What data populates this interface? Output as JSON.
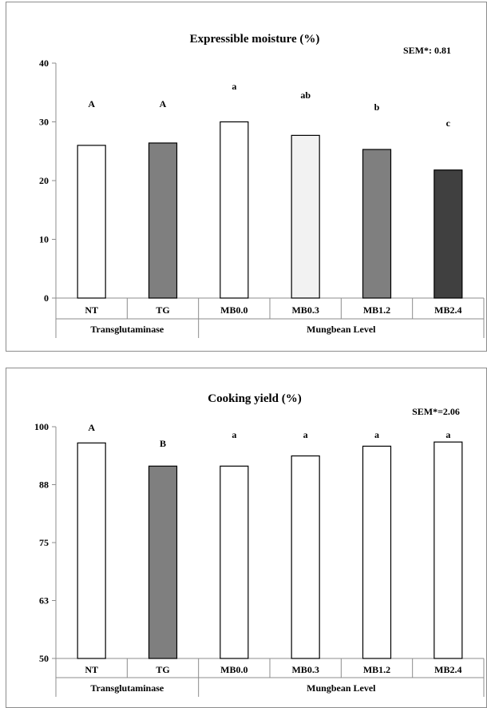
{
  "chart_data": [
    {
      "type": "bar",
      "title": "Expressible moisture (%)",
      "annotation": "SEM*: 0.81",
      "categories": [
        "NT",
        "TG",
        "MB0.0",
        "MB0.3",
        "MB1.2",
        "MB2.4"
      ],
      "groups": [
        {
          "label": "Transglutaminase",
          "span": 2
        },
        {
          "label": "Mungbean Level",
          "span": 4
        }
      ],
      "values": [
        26.0,
        26.4,
        30.0,
        27.7,
        25.3,
        21.8
      ],
      "significance_labels": [
        "A",
        "A",
        "a",
        "ab",
        "b",
        "c"
      ],
      "bar_colors": [
        "#ffffff",
        "#7f7f7f",
        "#ffffff",
        "#f2f2f2",
        "#7f7f7f",
        "#404040"
      ],
      "yticks": [
        "0",
        "10",
        "20",
        "30",
        "40"
      ],
      "ytick_values": [
        0,
        10,
        20,
        30,
        40
      ],
      "ylim": [
        0,
        40
      ],
      "grid": false,
      "xlabel": "",
      "ylabel": ""
    },
    {
      "type": "bar",
      "title": "Cooking yield (%)",
      "annotation": "SEM*=2.06",
      "categories": [
        "NT",
        "TG",
        "MB0.0",
        "MB0.3",
        "MB1.2",
        "MB2.4"
      ],
      "groups": [
        {
          "label": "Transglutaminase",
          "span": 2
        },
        {
          "label": "Mungbean Level",
          "span": 4
        }
      ],
      "values": [
        96.5,
        91.5,
        91.5,
        93.7,
        95.8,
        96.7
      ],
      "significance_labels": [
        "A",
        "B",
        "a",
        "a",
        "a",
        "a"
      ],
      "bar_colors": [
        "#ffffff",
        "#7f7f7f",
        "#ffffff",
        "#ffffff",
        "#ffffff",
        "#ffffff"
      ],
      "yticks": [
        "50",
        "63",
        "75",
        "88",
        "100"
      ],
      "ytick_values": [
        50,
        62.5,
        75,
        87.5,
        100
      ],
      "ylim": [
        50,
        100
      ],
      "grid": false,
      "xlabel": "",
      "ylabel": ""
    }
  ]
}
